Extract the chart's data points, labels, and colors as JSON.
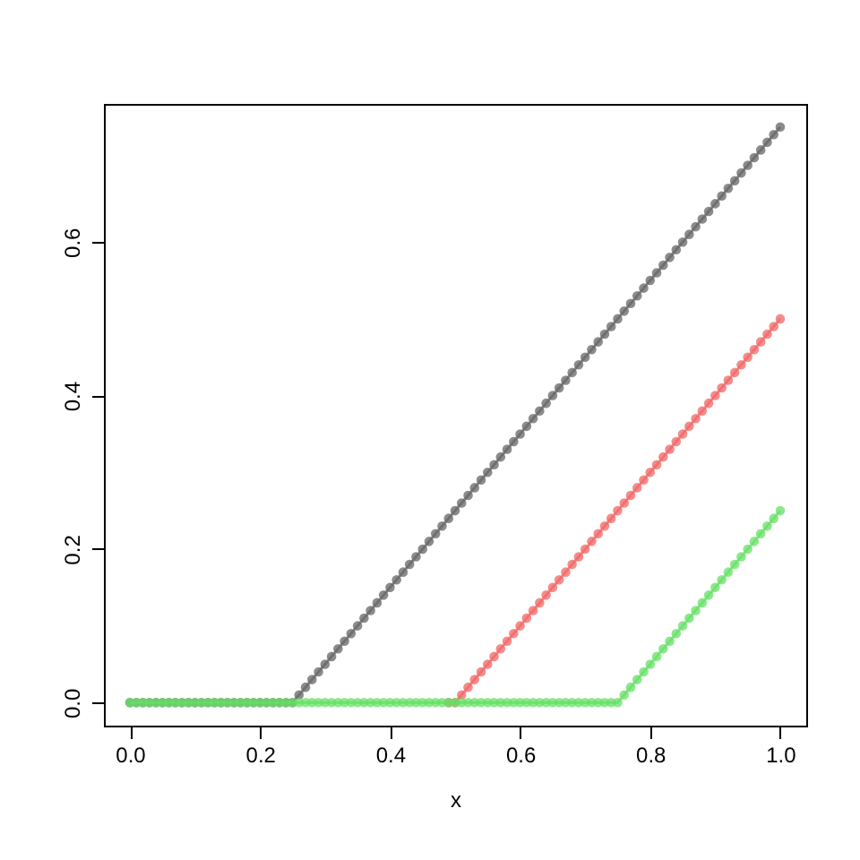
{
  "chart_data": {
    "type": "line",
    "xlabel": "x",
    "marker": "circle",
    "grid": false,
    "x": [
      0,
      0.01,
      0.02,
      0.03,
      0.04,
      0.05,
      0.06,
      0.07,
      0.08,
      0.09,
      0.1,
      0.11,
      0.12,
      0.13,
      0.14,
      0.15,
      0.16,
      0.17,
      0.18,
      0.19,
      0.2,
      0.21,
      0.22,
      0.23,
      0.24,
      0.25,
      0.26,
      0.27,
      0.28,
      0.29,
      0.3,
      0.31,
      0.32,
      0.33,
      0.34,
      0.35,
      0.36,
      0.37,
      0.38,
      0.39,
      0.4,
      0.41,
      0.42,
      0.43,
      0.44,
      0.45,
      0.46,
      0.47,
      0.48,
      0.49,
      0.5,
      0.51,
      0.52,
      0.53,
      0.54,
      0.55,
      0.56,
      0.57,
      0.58,
      0.59,
      0.6,
      0.61,
      0.62,
      0.63,
      0.64,
      0.65,
      0.66,
      0.67,
      0.68,
      0.69,
      0.7,
      0.71,
      0.72,
      0.73,
      0.74,
      0.75,
      0.76,
      0.77,
      0.78,
      0.79,
      0.8,
      0.81,
      0.82,
      0.83,
      0.84,
      0.85,
      0.86,
      0.87,
      0.88,
      0.89,
      0.9,
      0.91,
      0.92,
      0.93,
      0.94,
      0.95,
      0.96,
      0.97,
      0.98,
      0.99,
      1
    ],
    "series": [
      {
        "color": "#666666",
        "values": [
          0,
          0,
          0,
          0,
          0,
          0,
          0,
          0,
          0,
          0,
          0,
          0,
          0,
          0,
          0,
          0,
          0,
          0,
          0,
          0,
          0,
          0,
          0,
          0,
          0,
          0,
          0.01,
          0.02,
          0.03,
          0.04,
          0.05,
          0.06,
          0.07,
          0.08,
          0.09,
          0.1,
          0.11,
          0.12,
          0.13,
          0.14,
          0.15,
          0.16,
          0.17,
          0.18,
          0.19,
          0.2,
          0.21,
          0.22,
          0.23,
          0.24,
          0.25,
          0.26,
          0.27,
          0.28,
          0.29,
          0.3,
          0.31,
          0.32,
          0.33,
          0.34,
          0.35,
          0.36,
          0.37,
          0.38,
          0.39,
          0.4,
          0.41,
          0.42,
          0.43,
          0.44,
          0.45,
          0.46,
          0.47,
          0.48,
          0.49,
          0.5,
          0.51,
          0.52,
          0.53,
          0.54,
          0.55,
          0.56,
          0.57,
          0.58,
          0.59,
          0.6,
          0.61,
          0.62,
          0.63,
          0.64,
          0.65,
          0.66,
          0.67,
          0.68,
          0.69,
          0.7,
          0.71,
          0.72,
          0.73,
          0.74,
          0.75
        ]
      },
      {
        "color": "#f26666",
        "values": [
          null,
          null,
          null,
          null,
          null,
          null,
          null,
          null,
          null,
          null,
          null,
          null,
          null,
          null,
          null,
          null,
          null,
          null,
          null,
          null,
          null,
          null,
          null,
          null,
          null,
          null,
          null,
          null,
          null,
          null,
          null,
          null,
          null,
          null,
          null,
          null,
          null,
          null,
          null,
          null,
          null,
          null,
          null,
          null,
          null,
          null,
          null,
          null,
          null,
          0,
          0,
          0.01,
          0.02,
          0.03,
          0.04,
          0.05,
          0.06,
          0.07,
          0.08,
          0.09,
          0.1,
          0.11,
          0.12,
          0.13,
          0.14,
          0.15,
          0.16,
          0.17,
          0.18,
          0.19,
          0.2,
          0.21,
          0.22,
          0.23,
          0.24,
          0.25,
          0.26,
          0.27,
          0.28,
          0.29,
          0.3,
          0.31,
          0.32,
          0.33,
          0.34,
          0.35,
          0.36,
          0.37,
          0.38,
          0.39,
          0.4,
          0.41,
          0.42,
          0.43,
          0.44,
          0.45,
          0.46,
          0.47,
          0.48,
          0.49,
          0.5
        ]
      },
      {
        "color": "#66e066",
        "values": [
          0,
          0,
          0,
          0,
          0,
          0,
          0,
          0,
          0,
          0,
          0,
          0,
          0,
          0,
          0,
          0,
          0,
          0,
          0,
          0,
          0,
          0,
          0,
          0,
          0,
          0,
          0,
          0,
          0,
          0,
          0,
          0,
          0,
          0,
          0,
          0,
          0,
          0,
          0,
          0,
          0,
          0,
          0,
          0,
          0,
          0,
          0,
          0,
          0,
          0,
          0,
          0,
          0,
          0,
          0,
          0,
          0,
          0,
          0,
          0,
          0,
          0,
          0,
          0,
          0,
          0,
          0,
          0,
          0,
          0,
          0,
          0,
          0,
          0,
          0,
          0,
          0.01,
          0.02,
          0.03,
          0.04,
          0.05,
          0.06,
          0.07,
          0.08,
          0.09,
          0.1,
          0.11,
          0.12,
          0.13,
          0.14,
          0.15,
          0.16,
          0.17,
          0.18,
          0.19,
          0.2,
          0.21,
          0.22,
          0.23,
          0.24,
          0.25
        ]
      }
    ],
    "xlim": [
      -0.04,
      1.04
    ],
    "ylim": [
      -0.03,
      0.78
    ],
    "xticks": [
      {
        "value": 0,
        "label": "0.0"
      },
      {
        "value": 0.2,
        "label": "0.2"
      },
      {
        "value": 0.4,
        "label": "0.4"
      },
      {
        "value": 0.6,
        "label": "0.6"
      },
      {
        "value": 0.8,
        "label": "0.8"
      },
      {
        "value": 1,
        "label": "1.0"
      }
    ],
    "yticks": [
      {
        "value": 0,
        "label": "0.0"
      },
      {
        "value": 0.2,
        "label": "0.2"
      },
      {
        "value": 0.4,
        "label": "0.4"
      },
      {
        "value": 0.6,
        "label": "0.6"
      }
    ]
  }
}
